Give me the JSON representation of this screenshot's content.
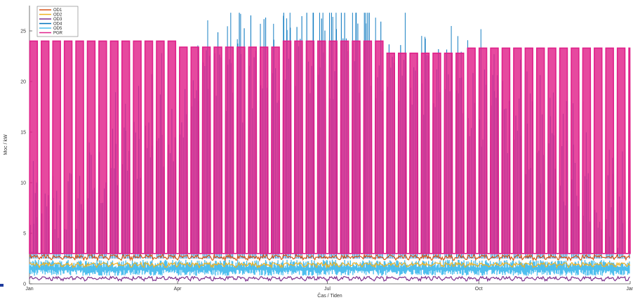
{
  "chart_data": {
    "type": "line",
    "xlabel": "Čas / Tiden",
    "ylabel": "Moc / kW",
    "xlim": [
      0,
      365
    ],
    "ylim": [
      0,
      27.5
    ],
    "x_ticks": [
      {
        "label": "Jan",
        "value": 0
      },
      {
        "label": "Apr",
        "value": 90
      },
      {
        "label": "Jul",
        "value": 181
      },
      {
        "label": "Oct",
        "value": 273
      },
      {
        "label": "Jan",
        "value": 365
      }
    ],
    "y_ticks": [
      {
        "label": "0",
        "value": 0
      },
      {
        "label": "5",
        "value": 5
      },
      {
        "label": "10",
        "value": 10
      },
      {
        "label": "15",
        "value": 15
      },
      {
        "label": "20",
        "value": 20
      },
      {
        "label": "25",
        "value": 25
      }
    ],
    "grid": false,
    "legend_position": "top-left",
    "series": [
      {
        "name": "OD1",
        "color": "#d95319",
        "baseline": 2.7,
        "description": "nearly constant around 2.5–3 kW"
      },
      {
        "name": "OD2",
        "color": "#edb120",
        "baseline": 1.9,
        "description": "nearly constant around 2 kW"
      },
      {
        "name": "OD3",
        "color": "#7e2f8e",
        "baseline": 0.6,
        "description": "nearly constant around 0.5 kW"
      },
      {
        "name": "OD4",
        "color": "#0072bd",
        "description": "daily peaks up to ~26.5 kW in summer, lower in winter"
      },
      {
        "name": "OD5",
        "color": "#4dbeee",
        "baseline": 1.5,
        "description": "band 0.8–2.3 kW"
      },
      {
        "name": "PGR",
        "color": "#e0218a",
        "description": "weekly blocks ~23–24 kW, dropping to ~3 kW at weekends",
        "plateaus": [
          {
            "from": "Jan",
            "to": "Mar",
            "value": 24.0
          },
          {
            "from": "Apr",
            "to": "Jun",
            "value": 23.5
          },
          {
            "from": "Jun",
            "to": "Jul",
            "value": 24.0
          },
          {
            "from": "Aug",
            "to": "Sep",
            "value": 22.8
          },
          {
            "from": "Oct",
            "to": "Dec",
            "value": 23.3
          }
        ]
      }
    ]
  }
}
